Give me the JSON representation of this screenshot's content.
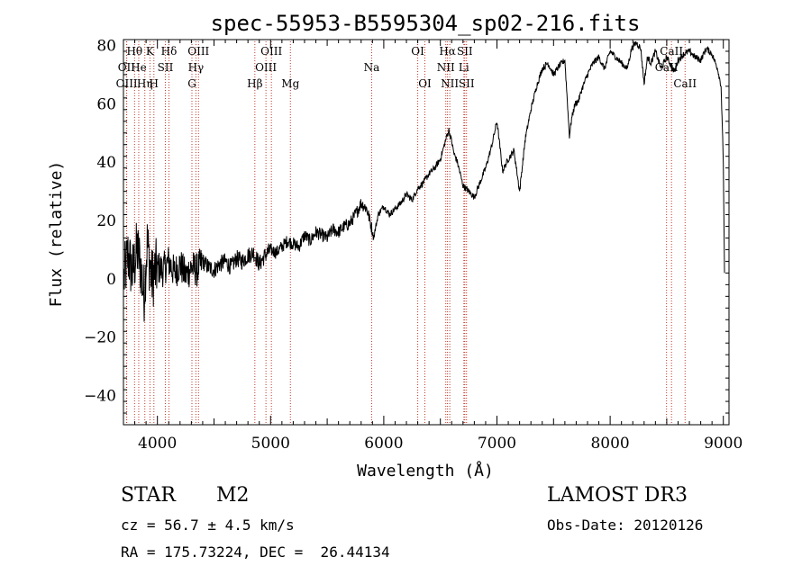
{
  "chart_data": {
    "type": "line",
    "title": "spec-55953-B5595304_sp02-216.fits",
    "xlabel": "Wavelength (Å)",
    "ylabel": "Flux (relative)",
    "xlim": [
      3700,
      9050
    ],
    "ylim": [
      -50,
      82
    ],
    "xticks": [
      4000,
      5000,
      6000,
      7000,
      8000,
      9000
    ],
    "xtick_labels": [
      "4000",
      "5000",
      "6000",
      "7000",
      "8000",
      "9000"
    ],
    "yticks": [
      -40,
      -20,
      0,
      20,
      40,
      60,
      80
    ],
    "ytick_labels": [
      "−40",
      "−20",
      "0",
      "20",
      "40",
      "60",
      "80"
    ],
    "grid": false,
    "series": [
      {
        "name": "flux",
        "x": [
          3705,
          3740,
          3780,
          3820,
          3850,
          3880,
          3910,
          3950,
          4000,
          4050,
          4100,
          4150,
          4200,
          4250,
          4300,
          4350,
          4400,
          4450,
          4500,
          4550,
          4600,
          4650,
          4700,
          4750,
          4800,
          4850,
          4900,
          4950,
          5000,
          5050,
          5100,
          5150,
          5200,
          5250,
          5300,
          5350,
          5400,
          5450,
          5500,
          5550,
          5600,
          5650,
          5700,
          5750,
          5800,
          5850,
          5890,
          5910,
          5950,
          6000,
          6050,
          6100,
          6150,
          6200,
          6250,
          6300,
          6350,
          6400,
          6450,
          6500,
          6550,
          6575,
          6600,
          6620,
          6650,
          6700,
          6750,
          6800,
          6850,
          6900,
          6950,
          7000,
          7050,
          7100,
          7150,
          7200,
          7250,
          7300,
          7350,
          7400,
          7450,
          7500,
          7550,
          7600,
          7640,
          7660,
          7690,
          7720,
          7750,
          7800,
          7850,
          7900,
          7950,
          8000,
          8050,
          8100,
          8150,
          8190,
          8230,
          8270,
          8300,
          8330,
          8360,
          8400,
          8450,
          8500,
          8540,
          8570,
          8600,
          8650,
          8700,
          8750,
          8800,
          8850,
          8900,
          8950,
          8980,
          9000,
          9010
        ],
        "y": [
          0,
          8,
          2,
          10,
          5,
          -6,
          12,
          0,
          4,
          3,
          6,
          2,
          5,
          1,
          4,
          3,
          6,
          4,
          3,
          5,
          6,
          4,
          7,
          6,
          8,
          9,
          5,
          8,
          10,
          9,
          11,
          13,
          12,
          11,
          15,
          13,
          16,
          15,
          14,
          17,
          16,
          18,
          19,
          22,
          26,
          24,
          18,
          14,
          22,
          25,
          22,
          24,
          26,
          29,
          27,
          31,
          33,
          36,
          38,
          41,
          48,
          51,
          47,
          43,
          40,
          32,
          30,
          28,
          33,
          38,
          45,
          54,
          37,
          41,
          44,
          30,
          48,
          58,
          66,
          72,
          74,
          70,
          73,
          75,
          49,
          55,
          60,
          61,
          65,
          70,
          74,
          76,
          72,
          78,
          76,
          74,
          72,
          79,
          81,
          79,
          67,
          76,
          74,
          78,
          72,
          76,
          73,
          71,
          75,
          77,
          78,
          76,
          75,
          79,
          77,
          72,
          66,
          40,
          2
        ]
      }
    ],
    "lines": [
      {
        "label": "Hθ",
        "x": 3798,
        "row": 0
      },
      {
        "label": "OII",
        "x": 3727,
        "row": 1
      },
      {
        "label": "OIII",
        "x": 3729,
        "row": 2
      },
      {
        "label": "He",
        "x": 3835,
        "row": 1
      },
      {
        "label": "Hη",
        "x": 3889,
        "row": 2
      },
      {
        "label": "K",
        "x": 3934,
        "row": 0
      },
      {
        "label": "SII",
        "x": 4070,
        "row": 1
      },
      {
        "label": "H",
        "x": 3969,
        "row": 2
      },
      {
        "label": "Hδ",
        "x": 4102,
        "row": 0
      },
      {
        "label": "OIII",
        "x": 4363,
        "row": 0
      },
      {
        "label": "Hγ",
        "x": 4340,
        "row": 1
      },
      {
        "label": "G",
        "x": 4305,
        "row": 2
      },
      {
        "label": "Hβ",
        "x": 4861,
        "row": 2
      },
      {
        "label": "OIII",
        "x": 5007,
        "row": 0
      },
      {
        "label": "OIII",
        "x": 4959,
        "row": 1
      },
      {
        "label": "Mg",
        "x": 5175,
        "row": 2
      },
      {
        "label": "Na",
        "x": 5893,
        "row": 1
      },
      {
        "label": "OI",
        "x": 6300,
        "row": 0
      },
      {
        "label": "OI",
        "x": 6363,
        "row": 2
      },
      {
        "label": "Hα",
        "x": 6563,
        "row": 0
      },
      {
        "label": "SII",
        "x": 6716,
        "row": 0
      },
      {
        "label": "NII",
        "x": 6548,
        "row": 1
      },
      {
        "label": "Li",
        "x": 6708,
        "row": 1
      },
      {
        "label": "NII",
        "x": 6583,
        "row": 2
      },
      {
        "label": "SII",
        "x": 6731,
        "row": 2
      },
      {
        "label": "CaII",
        "x": 8542,
        "row": 0
      },
      {
        "label": "CaII",
        "x": 8498,
        "row": 1
      },
      {
        "label": "CaII",
        "x": 8662,
        "row": 2
      }
    ]
  },
  "info": {
    "class": "STAR",
    "subclass": "M2",
    "survey": "LAMOST DR3",
    "cz": "cz = 56.7 ± 4.5 km/s",
    "obs_date": "Obs-Date: 20120126",
    "radec": "RA = 175.73224, DEC =  26.44134"
  }
}
